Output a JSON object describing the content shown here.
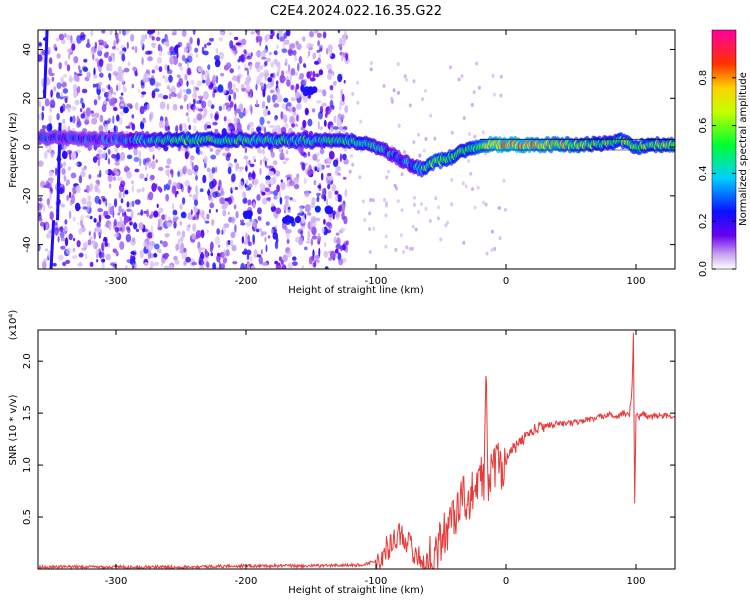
{
  "title": "C2E4.2024.022.16.35.G22",
  "chart_data": [
    {
      "type": "heatmap",
      "xlabel": "Height of straight line (km)",
      "ylabel": "Frequency (Hz)",
      "xlim": [
        -360,
        130
      ],
      "ylim": [
        -50,
        48
      ],
      "xticks": [
        -300,
        -200,
        -100,
        0,
        100
      ],
      "yticks": [
        -40,
        -20,
        0,
        20,
        40
      ],
      "grid": false,
      "colorbar": {
        "label": "Normalized spectral amplitude",
        "range": [
          0,
          1
        ],
        "ticks": [
          "0.0",
          "0.2",
          "0.4",
          "0.6",
          "0.8"
        ]
      },
      "ridge": {
        "x": [
          -355,
          -300,
          -250,
          -200,
          -150,
          -125,
          -110,
          -95,
          -85,
          -75,
          -65,
          -55,
          -45,
          -35,
          -25,
          -15,
          -5,
          20,
          60,
          75,
          90,
          98,
          110,
          130
        ],
        "y": [
          4,
          3,
          3,
          3,
          2.5,
          2.5,
          2,
          -1,
          -4,
          -7,
          -9,
          -6,
          -5,
          -2,
          0,
          1,
          1,
          1,
          1,
          1.5,
          2.5,
          0,
          1,
          1
        ],
        "amplitude": [
          0.25,
          0.25,
          0.5,
          0.45,
          0.4,
          0.45,
          0.45,
          0.35,
          0.3,
          0.3,
          0.45,
          0.6,
          0.55,
          0.5,
          0.55,
          0.7,
          0.8,
          0.75,
          0.6,
          0.5,
          0.55,
          0.6,
          0.55,
          0.6
        ]
      },
      "bright_clusters": [
        {
          "x": -150,
          "y": 23
        },
        {
          "x": -140,
          "y": -26
        },
        {
          "x": -195,
          "y": -28
        },
        {
          "x": -165,
          "y": -30
        }
      ]
    },
    {
      "type": "line",
      "xlabel": "Height of straight line (km)",
      "ylabel": "SNR (10 * v/v)",
      "y_multiplier": "(x10⁴)",
      "xlim": [
        -360,
        130
      ],
      "ylim": [
        0,
        2.3
      ],
      "xticks": [
        -300,
        -200,
        -100,
        0,
        100
      ],
      "yticks": [
        "0.5",
        "1.0",
        "1.5",
        "2.0"
      ],
      "grid": false,
      "series": [
        {
          "color": "#e83a3a",
          "x": [
            -360,
            -300,
            -250,
            -200,
            -150,
            -110,
            -100,
            -95,
            -90,
            -85,
            -80,
            -75,
            -70,
            -65,
            -60,
            -55,
            -50,
            -45,
            -40,
            -35,
            -30,
            -27,
            -25,
            -22,
            -20,
            -17,
            -15,
            -14,
            -12,
            -10,
            -5,
            0,
            5,
            10,
            15,
            20,
            25,
            30,
            40,
            50,
            60,
            70,
            80,
            85,
            90,
            95,
            97,
            98,
            99,
            100,
            102,
            105,
            110,
            120,
            130
          ],
          "y": [
            0.02,
            0.02,
            0.02,
            0.03,
            0.03,
            0.04,
            0.08,
            0.15,
            0.22,
            0.3,
            0.35,
            0.25,
            0.15,
            0.08,
            0.05,
            0.12,
            0.25,
            0.4,
            0.55,
            0.62,
            0.72,
            0.6,
            0.85,
            0.65,
            1.05,
            0.8,
            1.9,
            0.9,
            0.85,
            1.05,
            1.0,
            1.05,
            1.15,
            1.2,
            1.28,
            1.32,
            1.36,
            1.38,
            1.4,
            1.4,
            1.43,
            1.45,
            1.5,
            1.45,
            1.5,
            1.48,
            1.75,
            2.3,
            0.65,
            1.5,
            1.45,
            1.5,
            1.46,
            1.48,
            1.45
          ]
        }
      ]
    }
  ]
}
